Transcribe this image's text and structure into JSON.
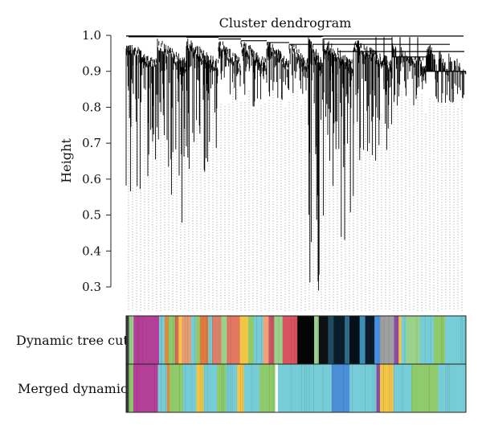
{
  "chart_data": {
    "type": "dendrogram",
    "title": "Cluster dendrogram",
    "ylabel": "Height",
    "xlabel": "",
    "ylim": [
      0.3,
      1.0
    ],
    "yticks": [
      "1.0",
      "0.9",
      "0.8",
      "0.7",
      "0.6",
      "0.5",
      "0.4",
      "0.3"
    ],
    "grid": false,
    "color_rows": [
      {
        "label": "Dynamic tree cut",
        "segments": [
          [
            "#3a3a3a",
            0.006
          ],
          [
            "#9ad18b",
            0.01
          ],
          [
            "#b33f99",
            0.055
          ],
          [
            "#77cdd7",
            0.012
          ],
          [
            "#e0893e",
            0.008
          ],
          [
            "#8fca6b",
            0.014
          ],
          [
            "#d56a5a",
            0.008
          ],
          [
            "#f2c547",
            0.007
          ],
          [
            "#e59d74",
            0.02
          ],
          [
            "#77cdd7",
            0.01
          ],
          [
            "#8fca6b",
            0.009
          ],
          [
            "#e0793e",
            0.018
          ],
          [
            "#77cdd7",
            0.008
          ],
          [
            "#d9806a",
            0.02
          ],
          [
            "#9ad18b",
            0.012
          ],
          [
            "#e27762",
            0.028
          ],
          [
            "#f2c547",
            0.018
          ],
          [
            "#8fca6b",
            0.012
          ],
          [
            "#77cdd7",
            0.02
          ],
          [
            "#f0a27a",
            0.012
          ],
          [
            "#c65566",
            0.012
          ],
          [
            "#9ad18b",
            0.018
          ],
          [
            "#d9545f",
            0.032
          ],
          [
            "#050505",
            0.036
          ],
          [
            "#9ad18b",
            0.01
          ],
          [
            "#0d1116",
            0.02
          ],
          [
            "#1f4b60",
            0.012
          ],
          [
            "#0a1d2b",
            0.024
          ],
          [
            "#2e6f8f",
            0.01
          ],
          [
            "#071019",
            0.022
          ],
          [
            "#3d8fb5",
            0.012
          ],
          [
            "#0c1c2a",
            0.02
          ],
          [
            "#4a90e2",
            0.012
          ],
          [
            "#a0a0a0",
            0.03
          ],
          [
            "#8e4ea3",
            0.01
          ],
          [
            "#f2c547",
            0.006
          ],
          [
            "#77cdd7",
            0.01
          ],
          [
            "#9ad18b",
            0.03
          ],
          [
            "#77cdd7",
            0.03
          ],
          [
            "#8fca6b",
            0.024
          ],
          [
            "#77cdd7",
            0.045
          ]
        ]
      },
      {
        "label": "Merged dynamic",
        "segments": [
          [
            "#3a3a3a",
            0.006
          ],
          [
            "#8fca6b",
            0.01
          ],
          [
            "#b33f99",
            0.055
          ],
          [
            "#77cdd7",
            0.02
          ],
          [
            "#e0893e",
            0.006
          ],
          [
            "#8fca6b",
            0.03
          ],
          [
            "#77cdd7",
            0.03
          ],
          [
            "#f2c547",
            0.016
          ],
          [
            "#77cdd7",
            0.03
          ],
          [
            "#8fca6b",
            0.02
          ],
          [
            "#77cdd7",
            0.025
          ],
          [
            "#f2c547",
            0.015
          ],
          [
            "#77cdd7",
            0.035
          ],
          [
            "#8fca6b",
            0.035
          ],
          [
            "#ffffff",
            0.006
          ],
          [
            "#77cdd7",
            0.12
          ],
          [
            "#4a8fd8",
            0.04
          ],
          [
            "#77cdd7",
            0.06
          ],
          [
            "#8e4ea3",
            0.008
          ],
          [
            "#f2c547",
            0.03
          ],
          [
            "#77cdd7",
            0.04
          ],
          [
            "#8fca6b",
            0.06
          ],
          [
            "#77cdd7",
            0.062
          ]
        ]
      }
    ]
  }
}
